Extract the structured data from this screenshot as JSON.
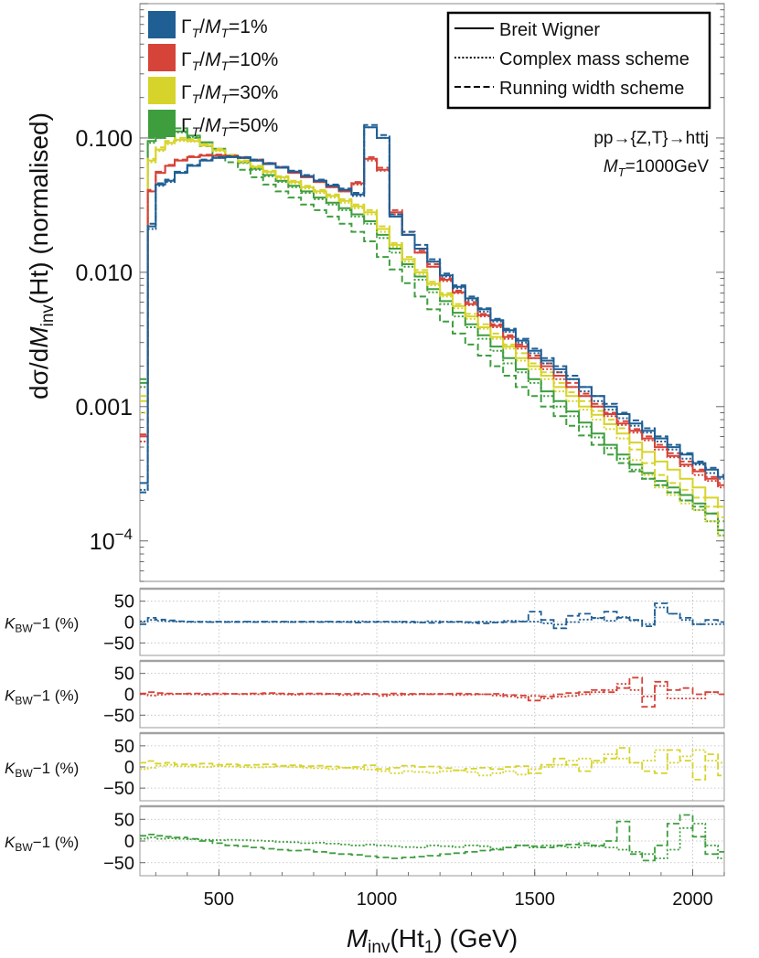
{
  "chart_data": {
    "type": "line",
    "main": {
      "ylabel": "dσ/dMinv(Ht) (normalised)",
      "y_tick_labels": [
        "10^-4",
        "0.001",
        "0.010",
        "0.100"
      ],
      "y_ticks": [
        0.0001,
        0.001,
        0.01,
        0.1
      ],
      "yscale": "log",
      "xlim": [
        250,
        2100
      ],
      "ylim": [
        5e-05,
        1.0
      ],
      "annotations": [
        "pp→{Z,T}→httj",
        "MT=1000GeV"
      ],
      "legend_widths": [
        {
          "label": "ΓT/MT=1%",
          "color": "#1f5f94"
        },
        {
          "label": "ΓT/MT=10%",
          "color": "#d64339"
        },
        {
          "label": "ΓT/MT=30%",
          "color": "#d6d42a"
        },
        {
          "label": "ΓT/MT=50%",
          "color": "#3e9e3e"
        }
      ],
      "legend_schemes": [
        {
          "label": "Breit Wigner",
          "dash": "solid"
        },
        {
          "label": "Complex mass scheme",
          "dash": "dotted"
        },
        {
          "label": "Running width scheme",
          "dash": "dashed"
        }
      ]
    },
    "bin_edges": [
      250,
      275,
      300,
      330,
      360,
      400,
      440,
      480,
      520,
      560,
      600,
      640,
      680,
      720,
      760,
      800,
      840,
      880,
      920,
      960,
      1000,
      1040,
      1080,
      1120,
      1160,
      1200,
      1240,
      1280,
      1320,
      1360,
      1400,
      1440,
      1480,
      1520,
      1560,
      1600,
      1640,
      1680,
      1720,
      1760,
      1800,
      1840,
      1880,
      1920,
      1960,
      2000,
      2040,
      2080,
      2100
    ],
    "series": [
      {
        "name": "ΓT/MT=1%",
        "color": "#1f5f94",
        "values": [
          0.00027,
          0.022,
          0.045,
          0.048,
          0.055,
          0.062,
          0.068,
          0.071,
          0.072,
          0.071,
          0.068,
          0.064,
          0.06,
          0.056,
          0.052,
          0.048,
          0.044,
          0.041,
          0.038,
          0.12,
          0.1,
          0.026,
          0.019,
          0.015,
          0.012,
          0.0095,
          0.0078,
          0.0064,
          0.0053,
          0.0044,
          0.0037,
          0.0031,
          0.0026,
          0.0022,
          0.0019,
          0.0016,
          0.0014,
          0.0012,
          0.001,
          0.00088,
          0.00075,
          0.00066,
          0.00058,
          0.0005,
          0.00044,
          0.00038,
          0.00034,
          0.0003
        ],
        "cms": [
          0.00024,
          0.021,
          0.044,
          0.047,
          0.055,
          0.062,
          0.068,
          0.071,
          0.072,
          0.071,
          0.068,
          0.064,
          0.06,
          0.056,
          0.052,
          0.048,
          0.044,
          0.041,
          0.037,
          0.12,
          0.1,
          0.026,
          0.019,
          0.015,
          0.012,
          0.0093,
          0.0076,
          0.0062,
          0.0051,
          0.0043,
          0.0036,
          0.003,
          0.0025,
          0.0021,
          0.0018,
          0.0016,
          0.0013,
          0.0011,
          0.00095,
          0.00082,
          0.00072,
          0.00064,
          0.00055,
          0.00048,
          0.00041,
          0.00037,
          0.00032,
          0.00029
        ],
        "rws": [
          0.00023,
          0.023,
          0.046,
          0.049,
          0.056,
          0.063,
          0.069,
          0.072,
          0.073,
          0.072,
          0.069,
          0.065,
          0.061,
          0.057,
          0.053,
          0.049,
          0.045,
          0.042,
          0.039,
          0.125,
          0.105,
          0.027,
          0.02,
          0.016,
          0.0125,
          0.0098,
          0.008,
          0.0066,
          0.0054,
          0.0045,
          0.0038,
          0.0032,
          0.0027,
          0.0023,
          0.002,
          0.0017,
          0.0014,
          0.0012,
          0.00105,
          0.0009,
          0.00079,
          0.00069,
          0.0006,
          0.00052,
          0.00045,
          0.00039,
          0.00035,
          0.00031
        ]
      },
      {
        "name": "ΓT/MT=10%",
        "color": "#d64339",
        "values": [
          0.0006,
          0.04,
          0.055,
          0.062,
          0.068,
          0.072,
          0.074,
          0.074,
          0.073,
          0.071,
          0.068,
          0.064,
          0.06,
          0.055,
          0.051,
          0.047,
          0.043,
          0.04,
          0.046,
          0.07,
          0.058,
          0.028,
          0.019,
          0.014,
          0.011,
          0.0088,
          0.0071,
          0.0058,
          0.0048,
          0.004,
          0.0033,
          0.0028,
          0.0023,
          0.002,
          0.0017,
          0.0014,
          0.0012,
          0.001,
          0.00088,
          0.00075,
          0.00066,
          0.00058,
          0.0005,
          0.00043,
          0.00037,
          0.00033,
          0.00029,
          0.00026
        ],
        "cms": [
          0.00055,
          0.04,
          0.055,
          0.062,
          0.068,
          0.072,
          0.074,
          0.074,
          0.073,
          0.071,
          0.068,
          0.064,
          0.06,
          0.055,
          0.051,
          0.047,
          0.043,
          0.04,
          0.045,
          0.068,
          0.057,
          0.027,
          0.019,
          0.014,
          0.011,
          0.0086,
          0.007,
          0.0057,
          0.0047,
          0.0039,
          0.0032,
          0.0027,
          0.0023,
          0.0019,
          0.0016,
          0.0014,
          0.0012,
          0.001,
          0.00085,
          0.00073,
          0.00064,
          0.00056,
          0.00048,
          0.00042,
          0.00036,
          0.00031,
          0.00028,
          0.00025
        ],
        "rws": [
          0.00062,
          0.041,
          0.056,
          0.063,
          0.069,
          0.073,
          0.075,
          0.075,
          0.074,
          0.072,
          0.069,
          0.065,
          0.061,
          0.056,
          0.052,
          0.048,
          0.044,
          0.041,
          0.047,
          0.072,
          0.06,
          0.029,
          0.02,
          0.0145,
          0.0115,
          0.009,
          0.0073,
          0.006,
          0.0049,
          0.0041,
          0.0034,
          0.0029,
          0.0024,
          0.0021,
          0.0018,
          0.0015,
          0.00125,
          0.00105,
          0.0009,
          0.00078,
          0.00068,
          0.0006,
          0.00052,
          0.00045,
          0.00039,
          0.00034,
          0.0003,
          0.00027
        ]
      },
      {
        "name": "ΓT/MT=30%",
        "color": "#d6d42a",
        "values": [
          0.0011,
          0.068,
          0.082,
          0.092,
          0.097,
          0.095,
          0.088,
          0.081,
          0.074,
          0.067,
          0.061,
          0.056,
          0.051,
          0.047,
          0.043,
          0.04,
          0.037,
          0.034,
          0.031,
          0.028,
          0.021,
          0.016,
          0.0125,
          0.01,
          0.0082,
          0.0068,
          0.0056,
          0.0047,
          0.0039,
          0.0033,
          0.0028,
          0.0023,
          0.002,
          0.0017,
          0.0014,
          0.0012,
          0.001,
          0.00087,
          0.00074,
          0.00063,
          0.00054,
          0.00046,
          0.00039,
          0.00034,
          0.00029,
          0.00025,
          0.00021,
          0.00018
        ],
        "cms": [
          0.0009,
          0.066,
          0.08,
          0.09,
          0.095,
          0.094,
          0.087,
          0.08,
          0.073,
          0.066,
          0.06,
          0.055,
          0.05,
          0.046,
          0.042,
          0.039,
          0.036,
          0.033,
          0.03,
          0.027,
          0.02,
          0.0155,
          0.012,
          0.0097,
          0.008,
          0.0066,
          0.0054,
          0.0045,
          0.0038,
          0.0032,
          0.0027,
          0.0022,
          0.0019,
          0.0016,
          0.0013,
          0.0011,
          0.00095,
          0.0008,
          0.00068,
          0.00058,
          0.0004,
          0.00031,
          0.00025,
          0.00022,
          0.00019,
          0.00017,
          0.00014,
          0.00011
        ],
        "rws": [
          0.0012,
          0.07,
          0.085,
          0.095,
          0.1,
          0.098,
          0.09,
          0.083,
          0.075,
          0.068,
          0.062,
          0.057,
          0.052,
          0.048,
          0.044,
          0.041,
          0.038,
          0.035,
          0.032,
          0.029,
          0.022,
          0.0165,
          0.013,
          0.0104,
          0.0085,
          0.007,
          0.0058,
          0.0049,
          0.0041,
          0.0035,
          0.0029,
          0.0025,
          0.0021,
          0.0018,
          0.0015,
          0.00128,
          0.0011,
          0.00093,
          0.0008,
          0.00069,
          0.00048,
          0.00038,
          0.00031,
          0.00027,
          0.00024,
          0.00021,
          0.00018,
          0.00015
        ]
      },
      {
        "name": "ΓT/MT=50%",
        "color": "#3e9e3e",
        "values": [
          0.0015,
          0.095,
          0.1,
          0.11,
          0.112,
          0.104,
          0.093,
          0.083,
          0.074,
          0.066,
          0.059,
          0.053,
          0.048,
          0.044,
          0.04,
          0.036,
          0.033,
          0.03,
          0.027,
          0.024,
          0.019,
          0.015,
          0.0115,
          0.0093,
          0.0075,
          0.0061,
          0.005,
          0.0041,
          0.0034,
          0.0028,
          0.0023,
          0.0019,
          0.0016,
          0.0013,
          0.0011,
          0.00092,
          0.00076,
          0.00063,
          0.00052,
          0.00044,
          0.00037,
          0.00032,
          0.00028,
          0.00025,
          0.00022,
          0.00019,
          0.00016,
          0.00012
        ],
        "cms": [
          0.0014,
          0.092,
          0.1,
          0.108,
          0.11,
          0.102,
          0.092,
          0.082,
          0.073,
          0.065,
          0.058,
          0.052,
          0.047,
          0.043,
          0.039,
          0.035,
          0.032,
          0.029,
          0.026,
          0.023,
          0.018,
          0.014,
          0.011,
          0.0088,
          0.0071,
          0.0058,
          0.0047,
          0.0039,
          0.0032,
          0.0026,
          0.0021,
          0.0018,
          0.0015,
          0.0012,
          0.001,
          0.00085,
          0.00071,
          0.00059,
          0.00049,
          0.00041,
          0.00034,
          0.00029,
          0.00026,
          0.00023,
          0.0002,
          0.00017,
          0.00014,
          0.00011
        ],
        "rws": [
          0.0016,
          0.1,
          0.105,
          0.12,
          0.118,
          0.1,
          0.087,
          0.075,
          0.066,
          0.058,
          0.051,
          0.045,
          0.04,
          0.036,
          0.032,
          0.029,
          0.026,
          0.023,
          0.02,
          0.017,
          0.013,
          0.0105,
          0.0083,
          0.0066,
          0.0053,
          0.0043,
          0.0035,
          0.0029,
          0.0024,
          0.002,
          0.0017,
          0.0014,
          0.0012,
          0.001,
          0.00085,
          0.00072,
          0.00061,
          0.00052,
          0.00044,
          0.00038,
          0.00033,
          0.00029,
          0.00026,
          0.00023,
          0.0002,
          0.00018,
          0.00016,
          0.00014
        ]
      }
    ],
    "ratio_panels": {
      "ylabel": "KBW−1 (%)",
      "y_ticks": [
        -50,
        0,
        50
      ],
      "y_tick_labels": [
        "−50",
        "0",
        "50"
      ],
      "ylim": [
        -80,
        80
      ],
      "series": [
        {
          "name": "ΓT/MT=1%",
          "color": "#1f5f94",
          "cms": [
            2,
            5,
            3,
            2,
            1,
            0,
            1,
            0,
            1,
            0,
            1,
            0,
            0,
            1,
            0,
            1,
            0,
            1,
            2,
            1,
            0,
            1,
            -1,
            0,
            2,
            1,
            0,
            -2,
            1,
            0,
            3,
            2,
            1,
            -3,
            -6,
            0,
            6,
            9,
            3,
            12,
            4,
            -5,
            35,
            20,
            5,
            -5,
            -5,
            -5
          ],
          "rws": [
            -5,
            10,
            6,
            4,
            2,
            1,
            0,
            1,
            0,
            1,
            0,
            1,
            1,
            0,
            1,
            0,
            1,
            0,
            -1,
            0,
            1,
            0,
            1,
            -1,
            -2,
            0,
            1,
            0,
            -3,
            -1,
            0,
            1,
            25,
            5,
            -15,
            15,
            20,
            10,
            25,
            10,
            5,
            -10,
            45,
            20,
            10,
            -5,
            5,
            0
          ]
        },
        {
          "name": "ΓT/MT=10%",
          "color": "#d64339",
          "cms": [
            0,
            -3,
            -1,
            0,
            1,
            0,
            -1,
            0,
            1,
            0,
            0,
            1,
            0,
            -1,
            0,
            0,
            1,
            -2,
            -1,
            0,
            -4,
            -2,
            -1,
            0,
            1,
            0,
            -2,
            -1,
            0,
            -3,
            -5,
            -8,
            -4,
            -10,
            -6,
            -4,
            0,
            5,
            10,
            25,
            10,
            -5,
            20,
            -10,
            -10,
            -10,
            5,
            0
          ],
          "rws": [
            2,
            5,
            3,
            2,
            1,
            2,
            1,
            2,
            1,
            1,
            2,
            3,
            2,
            1,
            2,
            2,
            1,
            1,
            2,
            1,
            0,
            2,
            1,
            1,
            0,
            1,
            2,
            1,
            0,
            1,
            -2,
            -3,
            -15,
            -5,
            0,
            3,
            5,
            10,
            5,
            15,
            40,
            -30,
            30,
            10,
            15,
            0,
            5,
            0
          ]
        },
        {
          "name": "ΓT/MT=30%",
          "color": "#d6d42a",
          "cms": [
            -5,
            -2,
            3,
            5,
            2,
            1,
            0,
            2,
            1,
            0,
            -1,
            0,
            1,
            0,
            -2,
            -3,
            -5,
            -2,
            -4,
            -6,
            -10,
            -15,
            -10,
            -12,
            -14,
            -10,
            -8,
            -12,
            -20,
            -15,
            -10,
            -18,
            -5,
            0,
            5,
            15,
            20,
            10,
            30,
            20,
            10,
            15,
            40,
            10,
            25,
            40,
            15,
            10
          ],
          "rws": [
            10,
            14,
            8,
            10,
            6,
            5,
            8,
            5,
            6,
            4,
            5,
            6,
            3,
            4,
            2,
            3,
            1,
            -2,
            0,
            4,
            -5,
            -2,
            3,
            0,
            1,
            -3,
            -8,
            -4,
            -2,
            -5,
            0,
            2,
            -15,
            5,
            20,
            5,
            -10,
            15,
            20,
            45,
            10,
            -10,
            -15,
            40,
            15,
            -30,
            30,
            -20
          ]
        },
        {
          "name": "ΓT/MT=50%",
          "color": "#3e9e3e",
          "cms": [
            5,
            8,
            5,
            6,
            5,
            4,
            3,
            2,
            3,
            2,
            1,
            0,
            -2,
            -3,
            -5,
            -4,
            -6,
            -8,
            -10,
            -8,
            -10,
            -12,
            -14,
            -15,
            -10,
            -12,
            -14,
            -10,
            -12,
            -18,
            -15,
            -10,
            -15,
            -10,
            -12,
            -15,
            -10,
            -12,
            -15,
            -20,
            -25,
            -30,
            -40,
            -20,
            30,
            40,
            -10,
            -40
          ],
          "rws": [
            12,
            15,
            12,
            10,
            8,
            5,
            0,
            -5,
            -10,
            -12,
            -15,
            -18,
            -20,
            -22,
            -20,
            -25,
            -28,
            -30,
            -32,
            -35,
            -38,
            -40,
            -38,
            -36,
            -34,
            -30,
            -28,
            -25,
            -22,
            -20,
            -15,
            -10,
            -12,
            -15,
            -10,
            -8,
            -5,
            -10,
            0,
            45,
            -30,
            -45,
            -10,
            40,
            60,
            10,
            -30,
            -25
          ]
        }
      ]
    },
    "x_ticks": [
      500,
      1000,
      1500,
      2000
    ],
    "x_tick_labels": [
      "500",
      "1000",
      "1500",
      "2000"
    ],
    "xlabel": "Minv(Ht1) (GeV)"
  }
}
